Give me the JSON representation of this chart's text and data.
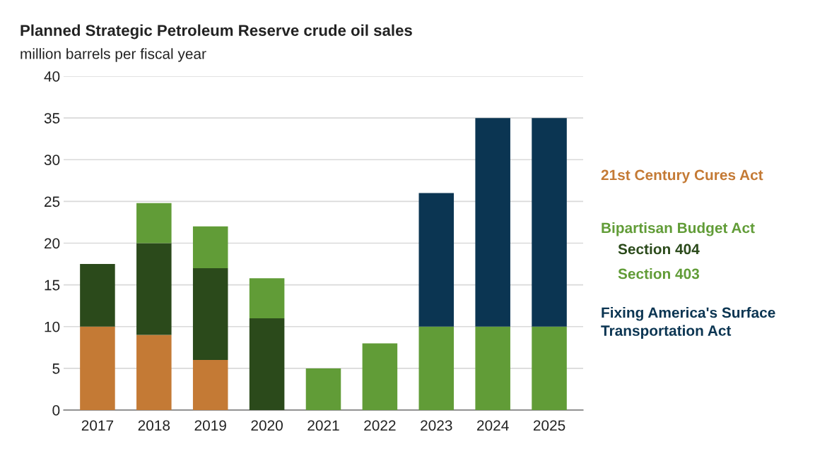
{
  "chart_data": {
    "type": "bar",
    "title": "Planned Strategic Petroleum Reserve crude oil sales",
    "subtitle": "million barrels per fiscal year",
    "categories": [
      "2017",
      "2018",
      "2019",
      "2020",
      "2021",
      "2022",
      "2023",
      "2024",
      "2025"
    ],
    "stacked": true,
    "series": [
      {
        "name": "21st Century Cures Act",
        "color": "#c47a35",
        "values": [
          10,
          9,
          6,
          0,
          0,
          0,
          0,
          0,
          0
        ]
      },
      {
        "name": "Section 404",
        "color": "#2b4a1b",
        "values": [
          7.5,
          11,
          11,
          11,
          0,
          0,
          0,
          0,
          0
        ]
      },
      {
        "name": "Section 403",
        "color": "#619c37",
        "values": [
          0,
          4.8,
          5,
          4.8,
          5,
          8,
          10,
          10,
          10
        ]
      },
      {
        "name": "Fixing America's Surface Transportation Act",
        "color": "#0b3552",
        "values": [
          0,
          0,
          0,
          0,
          0,
          0,
          16,
          25,
          25
        ]
      }
    ],
    "annotations": [
      "Bipartisan Budget Act"
    ],
    "ylim": [
      0,
      40
    ],
    "yticks": [
      0,
      5,
      10,
      15,
      20,
      25,
      30,
      35,
      40
    ],
    "grid": "y",
    "legend": "right"
  }
}
